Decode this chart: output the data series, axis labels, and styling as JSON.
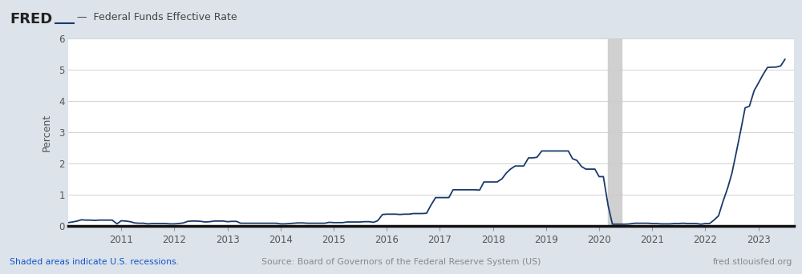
{
  "title": "Federal Funds Effective Rate",
  "ylabel": "Percent",
  "ylim": [
    0,
    6
  ],
  "yticks": [
    0,
    1,
    2,
    3,
    4,
    5,
    6
  ],
  "bg_color": "#dce3ea",
  "plot_bg_color": "#ffffff",
  "line_color": "#1a3a6b",
  "line_width": 1.3,
  "recession_color": "#d0d0d0",
  "recession_alpha": 1.0,
  "recession_start": 2020.17,
  "recession_end": 2020.42,
  "footer_left": "Shaded areas indicate U.S. recessions.",
  "footer_center": "Source: Board of Governors of the Federal Reserve System (US)",
  "footer_right": "fred.stlouisfed.org",
  "footer_color_left": "#1155cc",
  "footer_color_other": "#888888",
  "data_x": [
    2010.0,
    2010.08,
    2010.17,
    2010.25,
    2010.33,
    2010.42,
    2010.5,
    2010.58,
    2010.67,
    2010.75,
    2010.83,
    2010.92,
    2011.0,
    2011.08,
    2011.17,
    2011.25,
    2011.33,
    2011.42,
    2011.5,
    2011.58,
    2011.67,
    2011.75,
    2011.83,
    2011.92,
    2012.0,
    2012.08,
    2012.17,
    2012.25,
    2012.33,
    2012.42,
    2012.5,
    2012.58,
    2012.67,
    2012.75,
    2012.83,
    2012.92,
    2013.0,
    2013.08,
    2013.17,
    2013.25,
    2013.33,
    2013.42,
    2013.5,
    2013.58,
    2013.67,
    2013.75,
    2013.83,
    2013.92,
    2014.0,
    2014.08,
    2014.17,
    2014.25,
    2014.33,
    2014.42,
    2014.5,
    2014.58,
    2014.67,
    2014.75,
    2014.83,
    2014.92,
    2015.0,
    2015.08,
    2015.17,
    2015.25,
    2015.33,
    2015.42,
    2015.5,
    2015.58,
    2015.67,
    2015.75,
    2015.83,
    2015.92,
    2016.0,
    2016.08,
    2016.17,
    2016.25,
    2016.33,
    2016.42,
    2016.5,
    2016.58,
    2016.67,
    2016.75,
    2016.83,
    2016.92,
    2017.0,
    2017.08,
    2017.17,
    2017.25,
    2017.33,
    2017.42,
    2017.5,
    2017.58,
    2017.67,
    2017.75,
    2017.83,
    2017.92,
    2018.0,
    2018.08,
    2018.17,
    2018.25,
    2018.33,
    2018.42,
    2018.5,
    2018.58,
    2018.67,
    2018.75,
    2018.83,
    2018.92,
    2019.0,
    2019.08,
    2019.17,
    2019.25,
    2019.33,
    2019.42,
    2019.5,
    2019.58,
    2019.67,
    2019.75,
    2019.83,
    2019.92,
    2020.0,
    2020.08,
    2020.17,
    2020.25,
    2020.33,
    2020.42,
    2020.5,
    2020.58,
    2020.67,
    2020.75,
    2020.83,
    2020.92,
    2021.0,
    2021.08,
    2021.17,
    2021.25,
    2021.33,
    2021.42,
    2021.5,
    2021.58,
    2021.67,
    2021.75,
    2021.83,
    2021.92,
    2022.0,
    2022.08,
    2022.17,
    2022.25,
    2022.33,
    2022.42,
    2022.5,
    2022.58,
    2022.67,
    2022.75,
    2022.83,
    2022.92,
    2023.0,
    2023.08,
    2023.17,
    2023.25,
    2023.33,
    2023.42,
    2023.5
  ],
  "data_y": [
    0.11,
    0.13,
    0.16,
    0.2,
    0.19,
    0.19,
    0.18,
    0.19,
    0.19,
    0.19,
    0.19,
    0.07,
    0.17,
    0.16,
    0.14,
    0.1,
    0.09,
    0.09,
    0.07,
    0.08,
    0.08,
    0.08,
    0.08,
    0.07,
    0.07,
    0.08,
    0.1,
    0.15,
    0.16,
    0.16,
    0.15,
    0.13,
    0.14,
    0.16,
    0.16,
    0.16,
    0.14,
    0.15,
    0.15,
    0.09,
    0.09,
    0.09,
    0.09,
    0.09,
    0.09,
    0.09,
    0.09,
    0.09,
    0.07,
    0.07,
    0.08,
    0.09,
    0.1,
    0.1,
    0.09,
    0.09,
    0.09,
    0.09,
    0.09,
    0.12,
    0.11,
    0.11,
    0.11,
    0.13,
    0.13,
    0.13,
    0.13,
    0.14,
    0.14,
    0.12,
    0.17,
    0.37,
    0.38,
    0.38,
    0.38,
    0.37,
    0.38,
    0.38,
    0.4,
    0.4,
    0.4,
    0.41,
    0.66,
    0.91,
    0.91,
    0.91,
    0.91,
    1.16,
    1.16,
    1.16,
    1.16,
    1.16,
    1.16,
    1.15,
    1.41,
    1.41,
    1.41,
    1.41,
    1.51,
    1.69,
    1.82,
    1.92,
    1.92,
    1.92,
    2.18,
    2.18,
    2.2,
    2.4,
    2.4,
    2.4,
    2.4,
    2.4,
    2.4,
    2.4,
    2.15,
    2.1,
    1.9,
    1.82,
    1.82,
    1.82,
    1.58,
    1.58,
    0.65,
    0.06,
    0.06,
    0.06,
    0.06,
    0.07,
    0.09,
    0.09,
    0.09,
    0.09,
    0.08,
    0.08,
    0.07,
    0.07,
    0.07,
    0.08,
    0.08,
    0.09,
    0.08,
    0.08,
    0.08,
    0.06,
    0.08,
    0.08,
    0.2,
    0.33,
    0.77,
    1.21,
    1.68,
    2.33,
    3.08,
    3.78,
    3.83,
    4.33,
    4.57,
    4.82,
    5.07,
    5.08,
    5.08,
    5.12,
    5.33
  ],
  "xmin": 2010.0,
  "xmax": 2023.67,
  "xticks": [
    2011,
    2012,
    2013,
    2014,
    2015,
    2016,
    2017,
    2018,
    2019,
    2020,
    2021,
    2022,
    2023
  ]
}
